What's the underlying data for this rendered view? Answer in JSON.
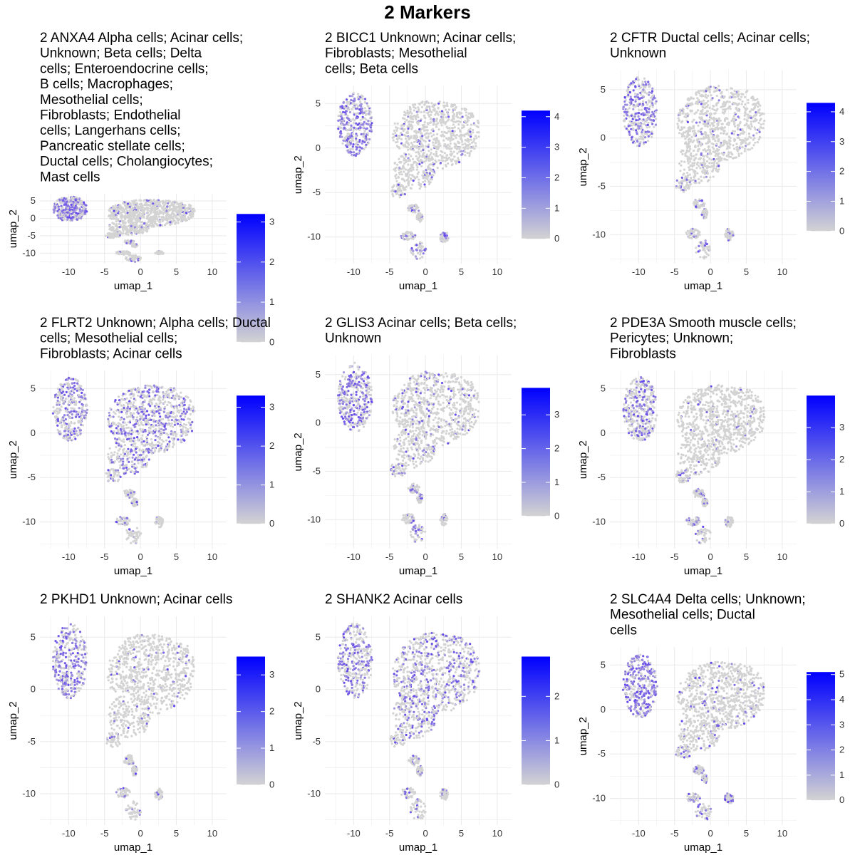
{
  "figure": {
    "title": "2 Markers"
  },
  "chart_data": [
    {
      "type": "scatter",
      "title": "2 ANXA4 Alpha cells; Acinar cells; Unknown; Beta cells; Delta cells; Enteroendocrine cells; B cells; Macrophages; Mesothelial cells; Fibroblasts; Endothelial cells; Langerhans cells; Pancreatic stellate cells; Ductal cells; Cholangiocytes; Mast cells",
      "title_lines": [
        "2 ANXA4 Alpha cells; Acinar cells;",
        "Unknown; Beta cells; Delta",
        "cells; Enteroendocrine cells;",
        "B cells; Macrophages;",
        "Mesothelial cells;",
        "Fibroblasts; Endothelial",
        "cells; Langerhans cells;",
        "Pancreatic stellate cells;",
        "Ductal cells; Cholangiocytes;",
        "Mast cells"
      ],
      "xlabel": "umap_1",
      "ylabel": "umap_2",
      "xlim": [
        -14,
        12
      ],
      "ylim": [
        -13,
        7
      ],
      "xticks": [
        -10,
        -5,
        0,
        5,
        10
      ],
      "yticks": [
        5,
        0,
        -5,
        -10
      ],
      "legend": {
        "min": 0,
        "max": 3.2,
        "ticks": [
          0,
          1,
          2,
          3
        ]
      },
      "expression": {
        "acinar": 0.55,
        "main": 0.06,
        "small": 0.12
      }
    },
    {
      "type": "scatter",
      "title": "2 BICC1 Unknown; Acinar cells; Fibroblasts; Mesothelial cells; Beta cells",
      "title_lines": [
        "2 BICC1 Unknown; Acinar cells;",
        "Fibroblasts; Mesothelial",
        "cells; Beta cells"
      ],
      "xlabel": "umap_1",
      "ylabel": "umap_2",
      "xlim": [
        -14,
        12
      ],
      "ylim": [
        -13,
        7
      ],
      "xticks": [
        -10,
        -5,
        0,
        5,
        10
      ],
      "yticks": [
        5,
        0,
        -5,
        -10
      ],
      "legend": {
        "min": 0,
        "max": 4.2,
        "ticks": [
          0,
          1,
          2,
          3,
          4
        ]
      },
      "expression": {
        "acinar": 0.5,
        "main": 0.08,
        "small": 0.25
      }
    },
    {
      "type": "scatter",
      "title": "2 CFTR Ductal cells; Acinar cells; Unknown",
      "title_lines": [
        "2 CFTR Ductal cells; Acinar cells;",
        "Unknown"
      ],
      "xlabel": "umap_1",
      "ylabel": "umap_2",
      "xlim": [
        -14,
        12
      ],
      "ylim": [
        -13,
        7
      ],
      "xticks": [
        -10,
        -5,
        0,
        5,
        10
      ],
      "yticks": [
        5,
        0,
        -5,
        -10
      ],
      "legend": {
        "min": 0,
        "max": 4.3,
        "ticks": [
          0,
          1,
          2,
          3,
          4
        ]
      },
      "expression": {
        "acinar": 0.55,
        "main": 0.07,
        "small": 0.22
      }
    },
    {
      "type": "scatter",
      "title": "2 FLRT2 Unknown; Alpha cells; Ductal cells; Mesothelial cells; Fibroblasts; Acinar cells",
      "title_lines": [
        "2 FLRT2 Unknown; Alpha cells; Ductal",
        "cells; Mesothelial cells;",
        "Fibroblasts; Acinar cells"
      ],
      "xlabel": "umap_1",
      "ylabel": "umap_2",
      "xlim": [
        -14,
        12
      ],
      "ylim": [
        -13,
        7
      ],
      "xticks": [
        -10,
        -5,
        0,
        5,
        10
      ],
      "yticks": [
        5,
        0,
        -5,
        -10
      ],
      "legend": {
        "min": 0,
        "max": 3.3,
        "ticks": [
          0,
          1,
          2,
          3
        ]
      },
      "expression": {
        "acinar": 0.45,
        "main": 0.35,
        "small": 0.15
      }
    },
    {
      "type": "scatter",
      "title": "2 GLIS3 Acinar cells; Beta cells; Unknown",
      "title_lines": [
        "2 GLIS3 Acinar cells; Beta cells;",
        "Unknown"
      ],
      "xlabel": "umap_1",
      "ylabel": "umap_2",
      "xlim": [
        -14,
        12
      ],
      "ylim": [
        -13,
        7
      ],
      "xticks": [
        -10,
        -5,
        0,
        5,
        10
      ],
      "yticks": [
        5,
        0,
        -5,
        -10
      ],
      "legend": {
        "min": 0,
        "max": 3.8,
        "ticks": [
          0,
          1,
          2,
          3
        ]
      },
      "expression": {
        "acinar": 0.5,
        "main": 0.1,
        "small": 0.25
      }
    },
    {
      "type": "scatter",
      "title": "2 PDE3A Smooth muscle cells; Pericytes; Unknown; Fibroblasts",
      "title_lines": [
        "2 PDE3A Smooth muscle cells;",
        "Pericytes; Unknown;",
        "Fibroblasts"
      ],
      "xlabel": "umap_1",
      "ylabel": "umap_2",
      "xlim": [
        -14,
        12
      ],
      "ylim": [
        -13,
        7
      ],
      "xticks": [
        -10,
        -5,
        0,
        5,
        10
      ],
      "yticks": [
        5,
        0,
        -5,
        -10
      ],
      "legend": {
        "min": 0,
        "max": 4.0,
        "ticks": [
          0,
          1,
          2,
          3
        ]
      },
      "expression": {
        "acinar": 0.35,
        "main": 0.03,
        "small": 0.15
      }
    },
    {
      "type": "scatter",
      "title": "2 PKHD1 Unknown; Acinar cells",
      "title_lines": [
        "2 PKHD1 Unknown; Acinar cells"
      ],
      "xlabel": "umap_1",
      "ylabel": "umap_2",
      "xlim": [
        -14,
        12
      ],
      "ylim": [
        -13,
        7
      ],
      "xticks": [
        -10,
        -5,
        0,
        5,
        10
      ],
      "yticks": [
        5,
        0,
        -5,
        -10
      ],
      "legend": {
        "min": 0,
        "max": 3.5,
        "ticks": [
          0,
          1,
          2,
          3
        ]
      },
      "expression": {
        "acinar": 0.55,
        "main": 0.05,
        "small": 0.15
      }
    },
    {
      "type": "scatter",
      "title": "2 SHANK2 Acinar cells",
      "title_lines": [
        "2 SHANK2 Acinar cells"
      ],
      "xlabel": "umap_1",
      "ylabel": "umap_2",
      "xlim": [
        -14,
        12
      ],
      "ylim": [
        -13,
        7
      ],
      "xticks": [
        -10,
        -5,
        0,
        5,
        10
      ],
      "yticks": [
        5,
        0,
        -5,
        -10
      ],
      "legend": {
        "min": 0,
        "max": 2.9,
        "ticks": [
          0,
          1,
          2
        ]
      },
      "expression": {
        "acinar": 0.45,
        "main": 0.3,
        "small": 0.2
      }
    },
    {
      "type": "scatter",
      "title": "2 SLC4A4 Delta cells; Unknown; Mesothelial cells; Ductal cells",
      "title_lines": [
        "2 SLC4A4 Delta cells; Unknown;",
        "Mesothelial cells; Ductal",
        "cells"
      ],
      "xlabel": "umap_1",
      "ylabel": "umap_2",
      "xlim": [
        -14,
        12
      ],
      "ylim": [
        -13,
        7
      ],
      "xticks": [
        -10,
        -5,
        0,
        5,
        10
      ],
      "yticks": [
        5,
        0,
        -5,
        -10
      ],
      "legend": {
        "min": 0,
        "max": 5.1,
        "ticks": [
          0,
          1,
          2,
          3,
          4,
          5
        ]
      },
      "expression": {
        "acinar": 0.65,
        "main": 0.07,
        "small": 0.25
      }
    }
  ],
  "colors": {
    "low": "#d3d3d3",
    "high": "#0000ff",
    "grid": "#ebebeb"
  }
}
